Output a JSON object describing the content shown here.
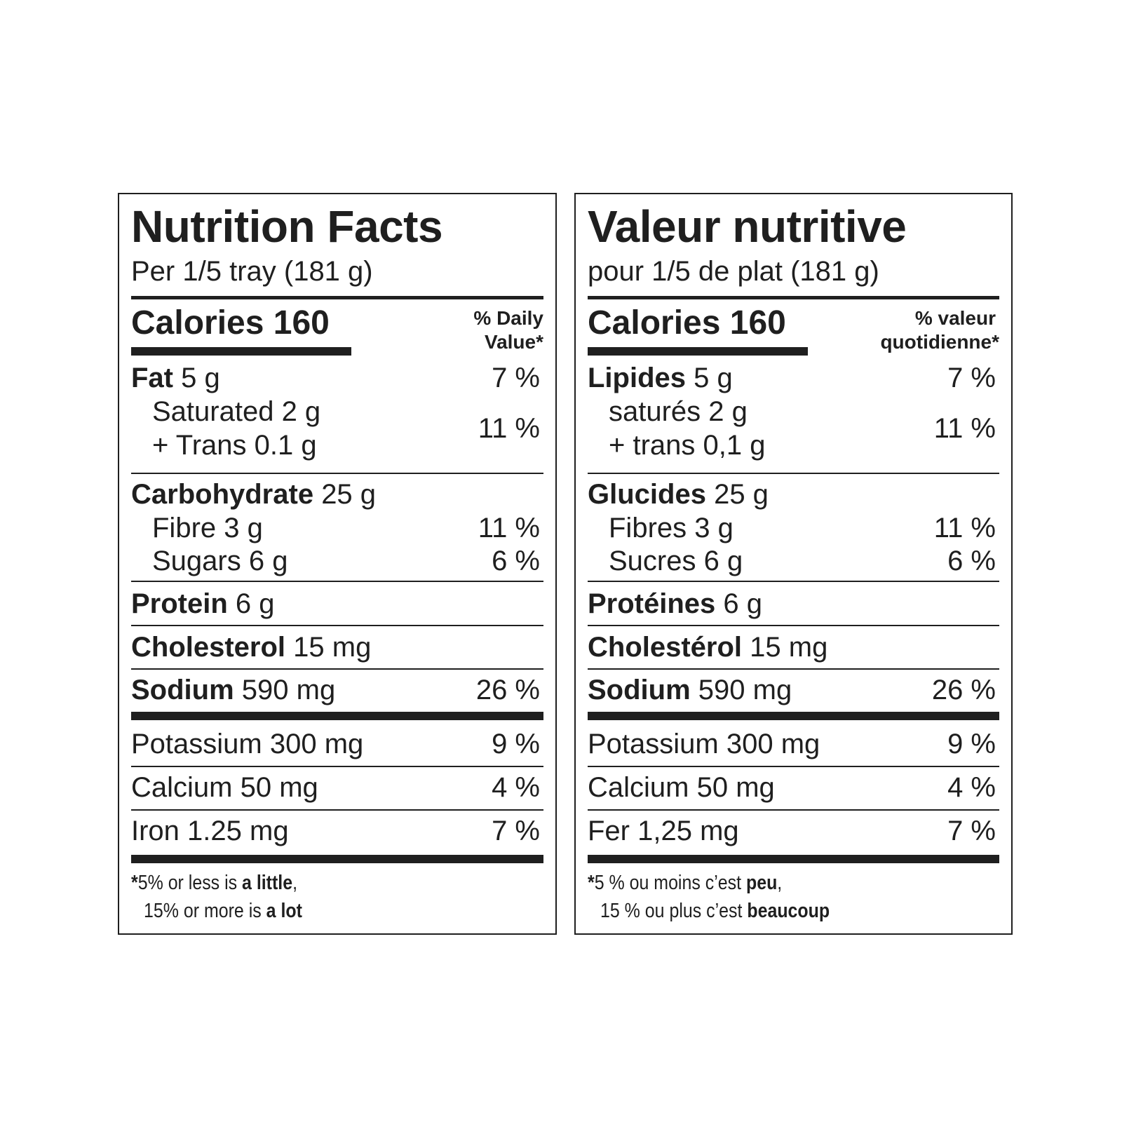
{
  "english": {
    "title": "Nutrition Facts",
    "serving": "Per 1/5 tray (181 g)",
    "calories": "Calories 160",
    "dv_line1": "% Daily",
    "dv_line2": "Value*",
    "fat_label": "Fat",
    "fat_amount": "5 g",
    "fat_pct": "7 %",
    "saturated": "Saturated 2 g",
    "trans": "+ Trans 0.1 g",
    "sat_trans_pct": "11 %",
    "carb_label": "Carbohydrate",
    "carb_amount": "25 g",
    "fibre": "Fibre 3 g",
    "fibre_pct": "11 %",
    "sugars": "Sugars 6 g",
    "sugars_pct": "6 %",
    "protein_label": "Protein",
    "protein_amount": "6 g",
    "cholesterol_label": "Cholesterol",
    "cholesterol_amount": "15 mg",
    "sodium_label": "Sodium",
    "sodium_amount": "590 mg",
    "sodium_pct": "26 %",
    "potassium": "Potassium 300 mg",
    "potassium_pct": "9 %",
    "calcium": "Calcium 50 mg",
    "calcium_pct": "4 %",
    "iron": "Iron 1.25 mg",
    "iron_pct": "7 %",
    "foot1_a": "5% or less is ",
    "foot1_b": "a little",
    "foot1_c": ",",
    "foot2_a": "15% or more is ",
    "foot2_b": "a lot"
  },
  "french": {
    "title": "Valeur nutritive",
    "serving": "pour 1/5 de plat (181 g)",
    "calories": "Calories 160",
    "dv_line1": "% valeur",
    "dv_line2": "quotidienne*",
    "fat_label": "Lipides",
    "fat_amount": "5 g",
    "fat_pct": "7 %",
    "saturated": "saturés 2 g",
    "trans": "+ trans 0,1 g",
    "sat_trans_pct": "11 %",
    "carb_label": "Glucides",
    "carb_amount": "25 g",
    "fibre": "Fibres 3 g",
    "fibre_pct": "11 %",
    "sugars": "Sucres 6 g",
    "sugars_pct": "6 %",
    "protein_label": "Protéines",
    "protein_amount": "6 g",
    "cholesterol_label": "Cholestérol",
    "cholesterol_amount": "15 mg",
    "sodium_label": "Sodium",
    "sodium_amount": "590 mg",
    "sodium_pct": "26 %",
    "potassium": "Potassium 300 mg",
    "potassium_pct": "9 %",
    "calcium": "Calcium 50 mg",
    "calcium_pct": "4 %",
    "iron": "Fer 1,25 mg",
    "iron_pct": "7 %",
    "foot1_a": "5 % ou moins c’est ",
    "foot1_b": "peu",
    "foot1_c": ",",
    "foot2_a": "15 % ou plus c’est ",
    "foot2_b": "beaucoup"
  },
  "footnote_star": "*"
}
